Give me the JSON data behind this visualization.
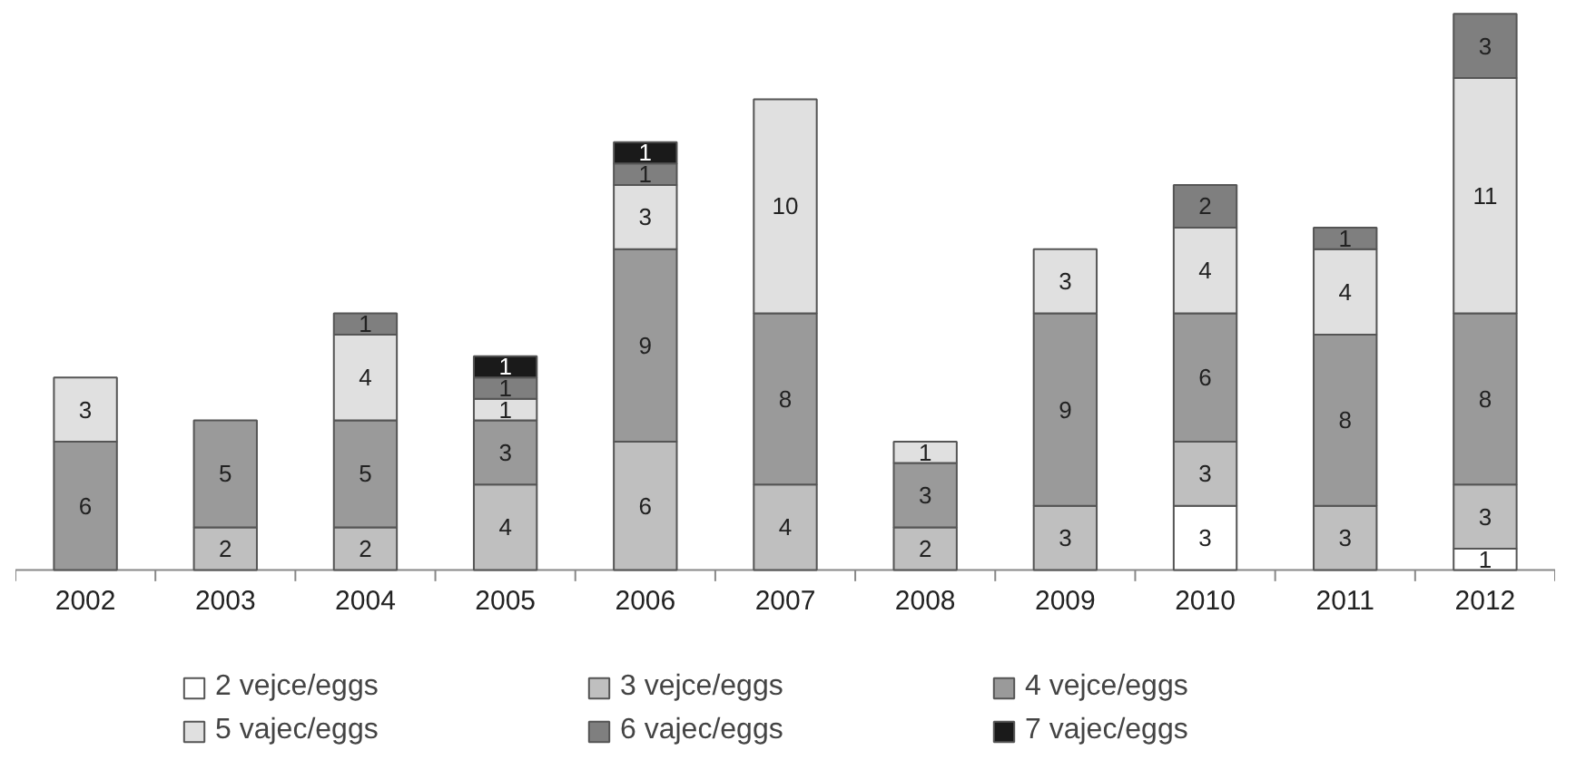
{
  "chart_data": {
    "type": "bar",
    "stacked": true,
    "data_labels": true,
    "legend": "bottom",
    "categories": [
      "2002",
      "2003",
      "2004",
      "2005",
      "2006",
      "2007",
      "2008",
      "2009",
      "2010",
      "2011",
      "2012"
    ],
    "series": [
      {
        "name": "2 vejce/eggs",
        "color": "#ffffff",
        "values": [
          null,
          null,
          null,
          null,
          null,
          null,
          null,
          null,
          3,
          null,
          1
        ]
      },
      {
        "name": "3 vejce/eggs",
        "color": "#bfbfbf",
        "values": [
          null,
          2,
          2,
          4,
          6,
          4,
          2,
          3,
          3,
          3,
          3
        ]
      },
      {
        "name": "4 vejce/eggs",
        "color": "#9a9a9a",
        "values": [
          6,
          5,
          5,
          3,
          9,
          8,
          3,
          9,
          6,
          8,
          8
        ]
      },
      {
        "name": "5 vajec/eggs",
        "color": "#e0e0e0",
        "values": [
          3,
          null,
          4,
          1,
          3,
          10,
          1,
          3,
          4,
          4,
          11
        ]
      },
      {
        "name": "6 vajec/eggs",
        "color": "#7f7f7f",
        "values": [
          null,
          null,
          1,
          1,
          1,
          null,
          null,
          null,
          2,
          1,
          3
        ]
      },
      {
        "name": "7 vajec/eggs",
        "color": "#1a1a1a",
        "values": [
          null,
          null,
          null,
          1,
          1,
          null,
          null,
          null,
          null,
          null,
          null
        ]
      }
    ]
  }
}
